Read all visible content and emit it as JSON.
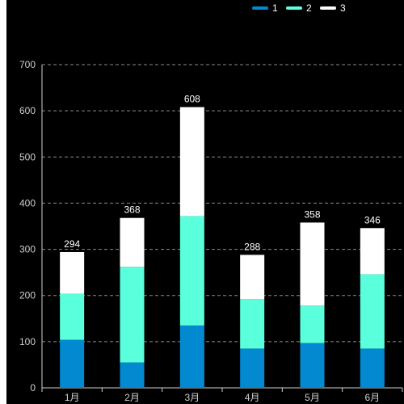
{
  "chart_data": {
    "type": "bar",
    "stacked": true,
    "categories": [
      "1月",
      "2月",
      "3月",
      "4月",
      "5月",
      "6月"
    ],
    "series": [
      {
        "name": "1",
        "color": "#0389cf",
        "values": [
          104,
          55,
          135,
          85,
          97,
          85
        ]
      },
      {
        "name": "2",
        "color": "#5affdc",
        "values": [
          100,
          207,
          237,
          107,
          81,
          161
        ]
      },
      {
        "name": "3",
        "color": "#ffffff",
        "values": [
          90,
          106,
          236,
          96,
          180,
          100
        ]
      }
    ],
    "totals": [
      294,
      368,
      608,
      288,
      358,
      346
    ],
    "title": "",
    "xlabel": "",
    "ylabel": "",
    "ylim": [
      0,
      700
    ],
    "yticks": [
      0,
      100,
      200,
      300,
      400,
      500,
      600,
      700
    ],
    "grid": true,
    "legend_position": "top-right",
    "background": "#000000"
  }
}
